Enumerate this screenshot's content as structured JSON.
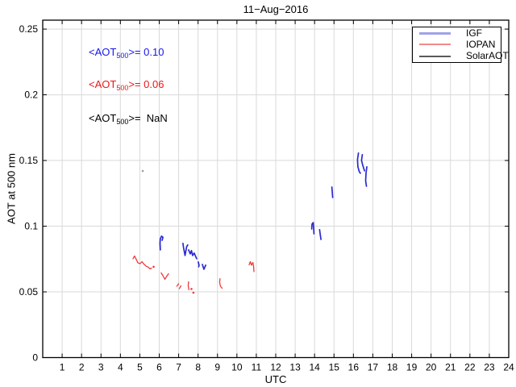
{
  "header": {
    "title": "11−Aug−2016"
  },
  "annotations": [
    {
      "pre": "<AOT",
      "sub": "500",
      "post": ">= 0.10",
      "color": "#1515ee"
    },
    {
      "pre": "<AOT",
      "sub": "500",
      "post": ">= 0.06",
      "color": "#ee1515"
    },
    {
      "pre": "<AOT",
      "sub": "500",
      "post": ">=  NaN",
      "color": "#000000"
    }
  ],
  "legend": {
    "items": [
      {
        "label": "IGF",
        "sample_color": "#a2a2e8",
        "sample_height": 3
      },
      {
        "label": "IOPAN",
        "sample_color": "#ef8a8a",
        "sample_height": 2
      },
      {
        "label": "SolarAOT",
        "sample_color": "#5a5a5a",
        "sample_height": 1.5
      }
    ]
  },
  "chart_data": {
    "type": "line",
    "title": "11−Aug−2016",
    "xlabel": "UTC",
    "ylabel": "AOT at 500 nm",
    "xlim": [
      0,
      24
    ],
    "ylim": [
      0,
      0.2568
    ],
    "x_ticks": [
      1,
      2,
      3,
      4,
      5,
      6,
      7,
      8,
      9,
      10,
      11,
      12,
      13,
      14,
      15,
      16,
      17,
      18,
      19,
      20,
      21,
      22,
      23,
      24
    ],
    "y_ticks": [
      0,
      0.05,
      0.1,
      0.15,
      0.2,
      0.25
    ],
    "y_tick_labels": [
      "0",
      "0.05",
      "0.1",
      "0.15",
      "0.2",
      "0.25"
    ],
    "grid": true,
    "grid_color": "#d9d9d9",
    "frame_color": "#000000",
    "series": [
      {
        "name": "IGF",
        "color": "#2b2bd0",
        "mean_aot500": 0.1,
        "segments": [
          [
            [
              6.06,
              0.082
            ],
            [
              6.04,
              0.0869
            ],
            [
              6.06,
              0.0906
            ],
            [
              6.12,
              0.0924
            ],
            [
              6.19,
              0.0915
            ],
            [
              6.15,
              0.0893
            ]
          ],
          [
            [
              7.22,
              0.0869
            ],
            [
              7.25,
              0.0838
            ],
            [
              7.33,
              0.0777
            ],
            [
              7.41,
              0.0844
            ],
            [
              7.47,
              0.0857
            ]
          ],
          [
            [
              7.51,
              0.082
            ],
            [
              7.6,
              0.0789
            ],
            [
              7.66,
              0.0814
            ],
            [
              7.72,
              0.0777
            ],
            [
              7.8,
              0.0795
            ],
            [
              7.89,
              0.0765
            ],
            [
              7.93,
              0.0752
            ]
          ],
          [
            [
              8.01,
              0.0728
            ],
            [
              8.05,
              0.0703
            ],
            [
              8.03,
              0.0691
            ]
          ],
          [
            [
              8.22,
              0.0709
            ],
            [
              8.3,
              0.0672
            ],
            [
              8.39,
              0.0703
            ]
          ],
          [
            [
              13.85,
              0.0979
            ],
            [
              13.87,
              0.1016
            ],
            [
              13.93,
              0.1028
            ],
            [
              13.95,
              0.0985
            ],
            [
              13.97,
              0.0942
            ]
          ],
          [
            [
              14.26,
              0.0973
            ],
            [
              14.29,
              0.0936
            ],
            [
              14.33,
              0.0899
            ]
          ],
          [
            [
              14.89,
              0.1298
            ],
            [
              14.91,
              0.1261
            ],
            [
              14.93,
              0.1218
            ]
          ],
          [
            [
              16.26,
              0.1556
            ],
            [
              16.21,
              0.1507
            ],
            [
              16.23,
              0.1452
            ],
            [
              16.3,
              0.1415
            ],
            [
              16.36,
              0.1403
            ]
          ],
          [
            [
              16.46,
              0.1544
            ],
            [
              16.42,
              0.1501
            ],
            [
              16.48,
              0.1464
            ],
            [
              16.57,
              0.1421
            ]
          ],
          [
            [
              16.69,
              0.1452
            ],
            [
              16.65,
              0.1403
            ],
            [
              16.63,
              0.1347
            ],
            [
              16.67,
              0.1304
            ]
          ]
        ],
        "points": []
      },
      {
        "name": "IOPAN",
        "color": "#ee3b3b",
        "mean_aot500": 0.06,
        "segments": [
          [
            [
              4.65,
              0.0752
            ],
            [
              4.73,
              0.0773
            ],
            [
              4.82,
              0.0746
            ],
            [
              4.9,
              0.0721
            ],
            [
              5.02,
              0.0715
            ],
            [
              5.11,
              0.073
            ],
            [
              5.19,
              0.0715
            ],
            [
              5.31,
              0.0697
            ],
            [
              5.44,
              0.0688
            ],
            [
              5.52,
              0.0675
            ],
            [
              5.6,
              0.0681
            ]
          ],
          [
            [
              6.1,
              0.0645
            ],
            [
              6.19,
              0.0623
            ],
            [
              6.29,
              0.0596
            ],
            [
              6.39,
              0.062
            ],
            [
              6.48,
              0.0639
            ]
          ],
          [
            [
              6.91,
              0.0543
            ],
            [
              7.0,
              0.0562
            ]
          ],
          [
            [
              7.04,
              0.0525
            ],
            [
              7.12,
              0.0546
            ]
          ],
          [
            [
              7.51,
              0.0577
            ],
            [
              7.49,
              0.0549
            ],
            [
              7.53,
              0.0516
            ]
          ],
          [
            [
              9.13,
              0.0601
            ],
            [
              9.11,
              0.0574
            ],
            [
              9.15,
              0.0543
            ],
            [
              9.24,
              0.0528
            ]
          ],
          [
            [
              10.63,
              0.0706
            ],
            [
              10.69,
              0.073
            ],
            [
              10.75,
              0.0703
            ],
            [
              10.82,
              0.0724
            ],
            [
              10.86,
              0.0697
            ],
            [
              10.88,
              0.0654
            ]
          ]
        ],
        "points": [
          [
            5.71,
            0.0691
          ],
          [
            7.66,
            0.0522
          ],
          [
            7.76,
            0.0494
          ]
        ]
      },
      {
        "name": "SolarAOT",
        "color": "#a0a0a0",
        "mean_aot500": "NaN",
        "segments": [],
        "points": [
          [
            5.15,
            0.142
          ]
        ]
      }
    ]
  }
}
